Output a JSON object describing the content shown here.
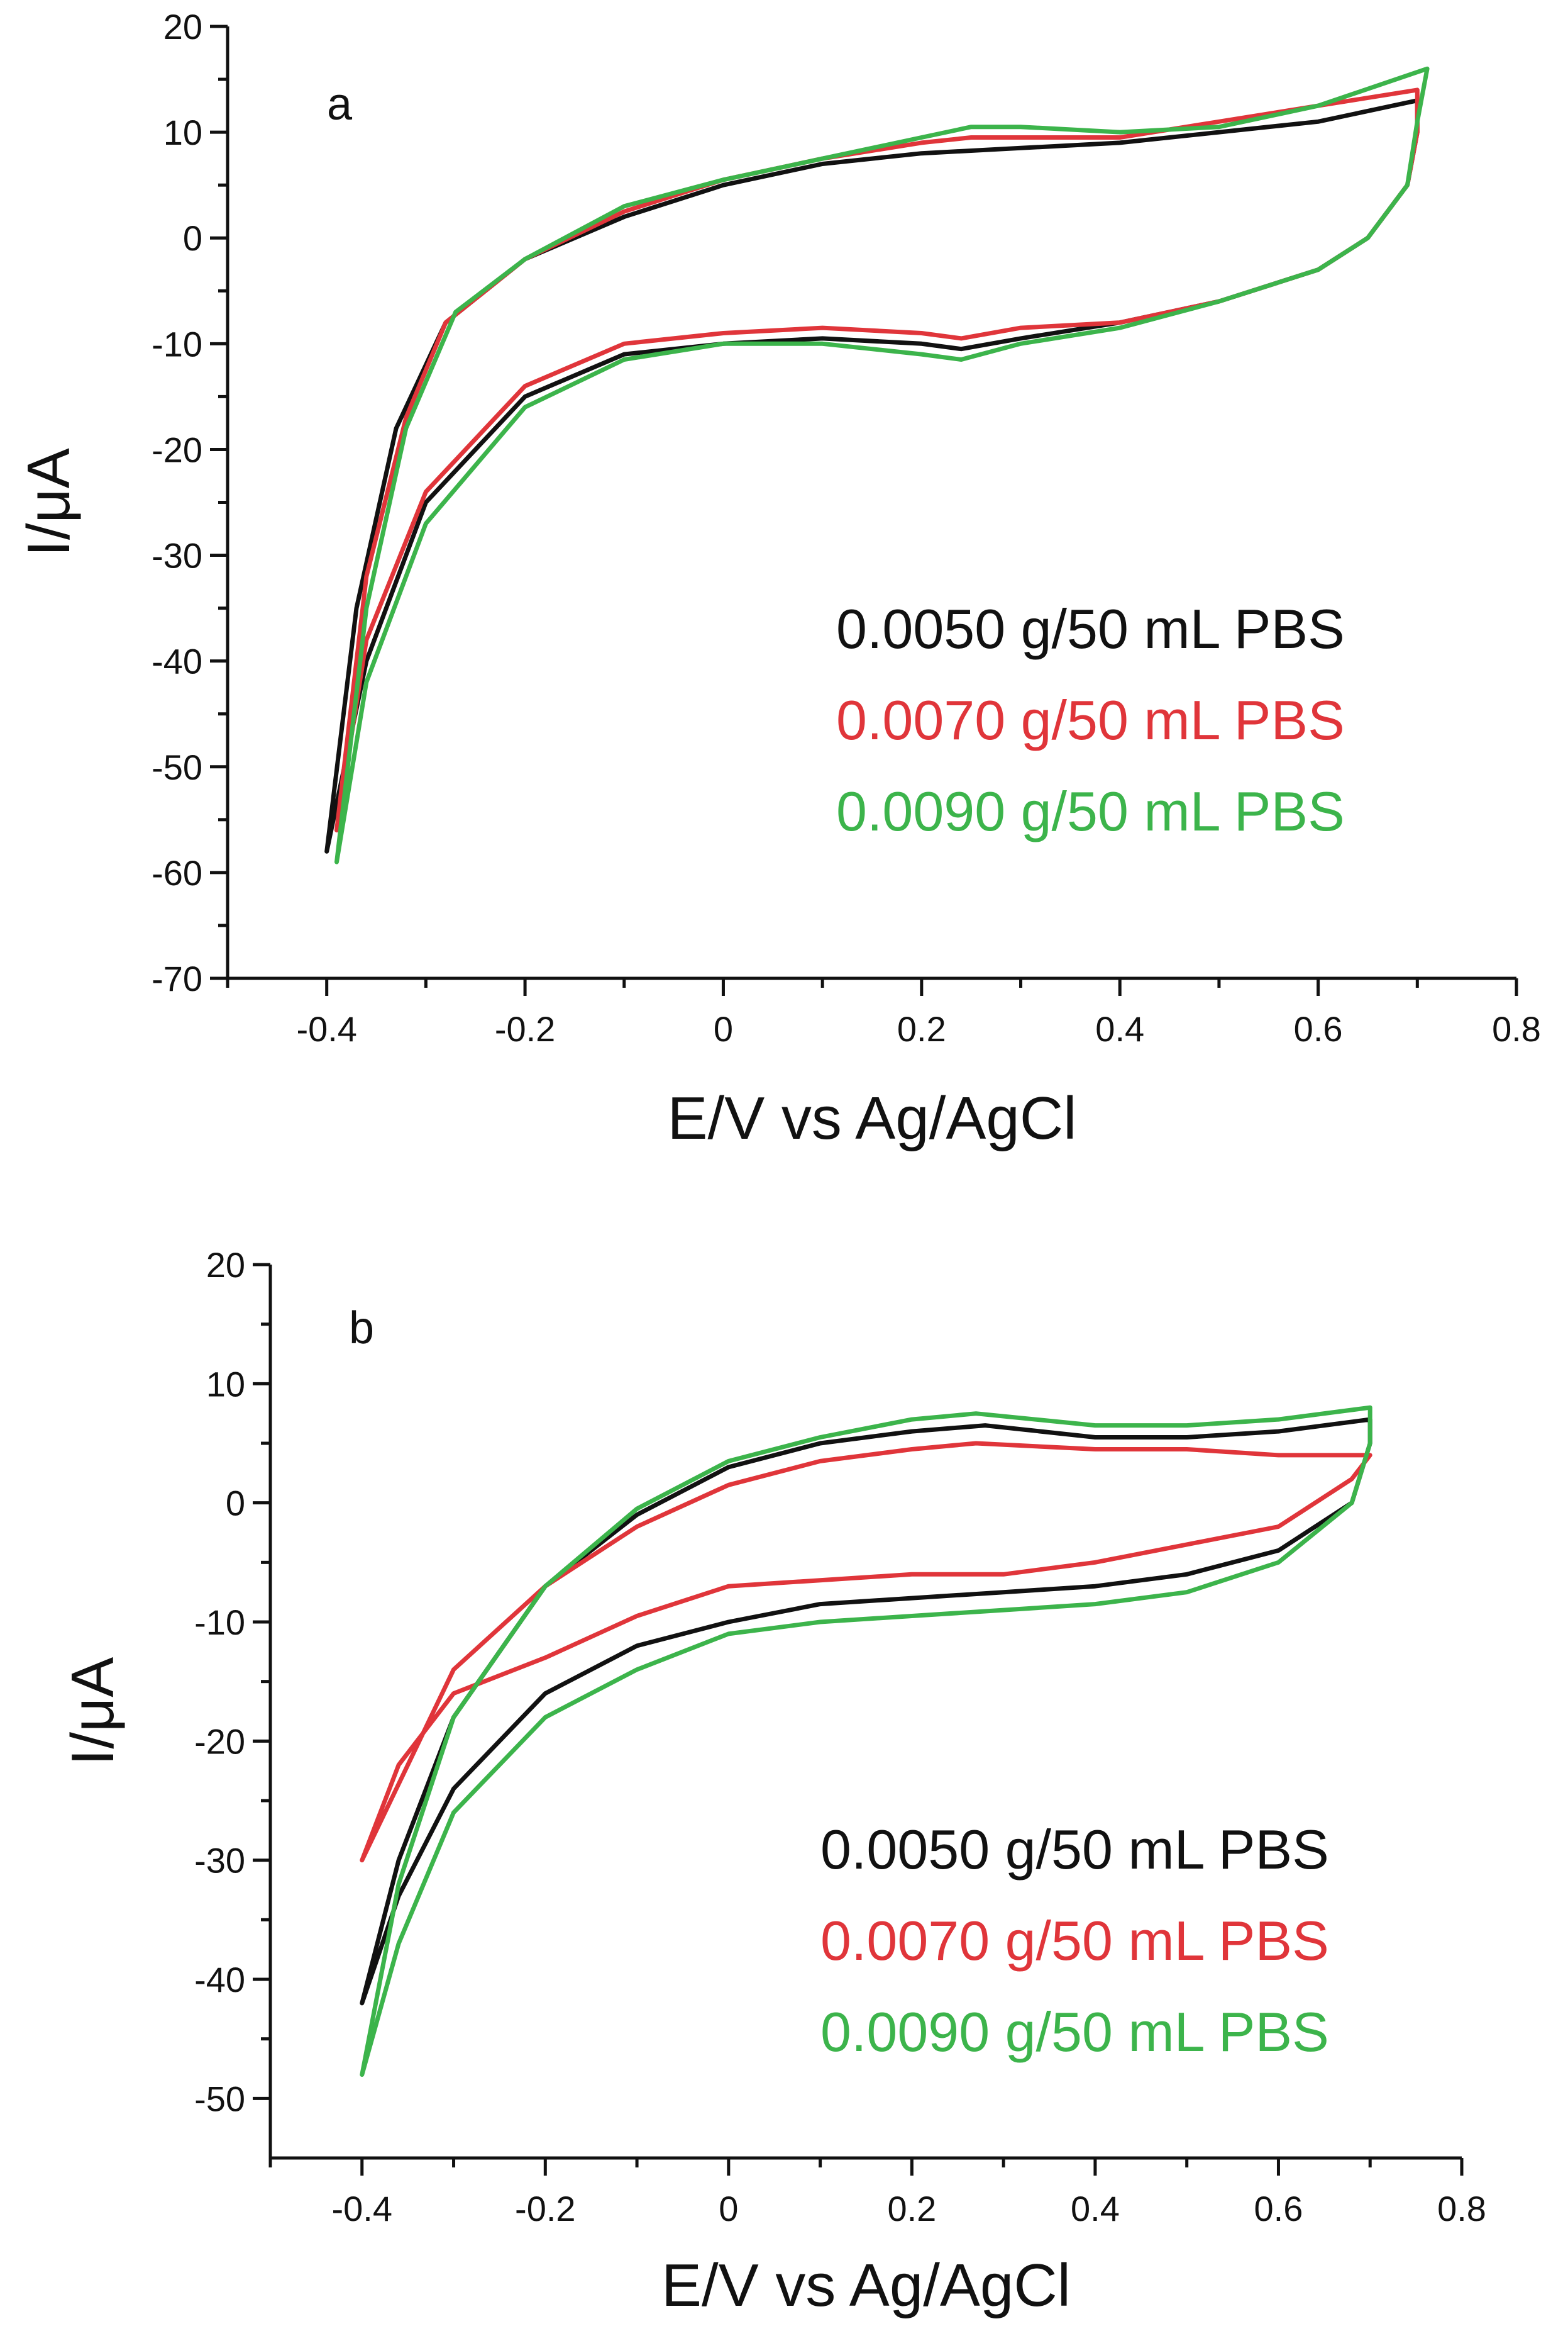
{
  "chart_data": [
    {
      "panel_label": "a",
      "type": "line",
      "xlabel": "E/V vs Ag/AgCl",
      "ylabel": "I/μA",
      "xlim": [
        -0.5,
        0.8
      ],
      "ylim": [
        -70,
        20
      ],
      "x_ticks": [
        -0.4,
        -0.2,
        0,
        0.2,
        0.4,
        0.6,
        0.8
      ],
      "x_tick_labels": [
        "-0.4",
        "-0.2",
        "0",
        "0.2",
        "0.4",
        "0.6",
        "0.8"
      ],
      "y_ticks": [
        20,
        10,
        0,
        -10,
        -20,
        -30,
        -40,
        -50,
        -60,
        -70
      ],
      "y_tick_labels": [
        "20",
        "10",
        "0",
        "-10",
        "-20",
        "-30",
        "-40",
        "-50",
        "-60",
        "-70"
      ],
      "legend_position": "lower-right",
      "series": [
        {
          "name": "0.0050 g/50 mL PBS",
          "color": "#111111",
          "points": [
            [
              -0.4,
              -58
            ],
            [
              -0.37,
              -35
            ],
            [
              -0.33,
              -18
            ],
            [
              -0.28,
              -8
            ],
            [
              -0.2,
              -2
            ],
            [
              -0.1,
              2
            ],
            [
              0.0,
              5
            ],
            [
              0.1,
              7
            ],
            [
              0.2,
              8
            ],
            [
              0.3,
              8.5
            ],
            [
              0.4,
              9
            ],
            [
              0.5,
              10
            ],
            [
              0.6,
              11
            ],
            [
              0.7,
              13
            ],
            [
              0.7,
              10
            ],
            [
              0.69,
              5
            ],
            [
              0.65,
              0
            ],
            [
              0.6,
              -3
            ],
            [
              0.5,
              -6
            ],
            [
              0.4,
              -8
            ],
            [
              0.3,
              -9.5
            ],
            [
              0.24,
              -10.5
            ],
            [
              0.2,
              -10
            ],
            [
              0.1,
              -9.5
            ],
            [
              0.0,
              -10
            ],
            [
              -0.1,
              -11
            ],
            [
              -0.2,
              -15
            ],
            [
              -0.3,
              -25
            ],
            [
              -0.36,
              -40
            ],
            [
              -0.4,
              -58
            ]
          ]
        },
        {
          "name": "0.0070 g/50 mL PBS",
          "color": "#e0353a",
          "points": [
            [
              -0.39,
              -56
            ],
            [
              -0.36,
              -32
            ],
            [
              -0.32,
              -17
            ],
            [
              -0.28,
              -8
            ],
            [
              -0.2,
              -2
            ],
            [
              -0.1,
              2.5
            ],
            [
              0.0,
              5.5
            ],
            [
              0.1,
              7.5
            ],
            [
              0.2,
              9
            ],
            [
              0.25,
              9.5
            ],
            [
              0.3,
              9.5
            ],
            [
              0.4,
              9.5
            ],
            [
              0.5,
              11
            ],
            [
              0.6,
              12.5
            ],
            [
              0.7,
              14
            ],
            [
              0.7,
              10
            ],
            [
              0.69,
              5
            ],
            [
              0.65,
              0
            ],
            [
              0.6,
              -3
            ],
            [
              0.5,
              -6
            ],
            [
              0.4,
              -8
            ],
            [
              0.3,
              -8.5
            ],
            [
              0.24,
              -9.5
            ],
            [
              0.2,
              -9
            ],
            [
              0.1,
              -8.5
            ],
            [
              0.0,
              -9
            ],
            [
              -0.1,
              -10
            ],
            [
              -0.2,
              -14
            ],
            [
              -0.3,
              -24
            ],
            [
              -0.36,
              -38
            ],
            [
              -0.39,
              -56
            ]
          ]
        },
        {
          "name": "0.0090 g/50 mL PBS",
          "color": "#3cb44b",
          "points": [
            [
              -0.39,
              -59
            ],
            [
              -0.36,
              -35
            ],
            [
              -0.32,
              -18
            ],
            [
              -0.27,
              -7
            ],
            [
              -0.2,
              -2
            ],
            [
              -0.1,
              3
            ],
            [
              0.0,
              5.5
            ],
            [
              0.1,
              7.5
            ],
            [
              0.2,
              9.5
            ],
            [
              0.25,
              10.5
            ],
            [
              0.3,
              10.5
            ],
            [
              0.4,
              10
            ],
            [
              0.5,
              10.5
            ],
            [
              0.6,
              12.5
            ],
            [
              0.71,
              16
            ],
            [
              0.7,
              11
            ],
            [
              0.69,
              5
            ],
            [
              0.65,
              0
            ],
            [
              0.6,
              -3
            ],
            [
              0.5,
              -6
            ],
            [
              0.4,
              -8.5
            ],
            [
              0.3,
              -10
            ],
            [
              0.24,
              -11.5
            ],
            [
              0.2,
              -11
            ],
            [
              0.1,
              -10
            ],
            [
              0.0,
              -10
            ],
            [
              -0.1,
              -11.5
            ],
            [
              -0.2,
              -16
            ],
            [
              -0.3,
              -27
            ],
            [
              -0.36,
              -42
            ],
            [
              -0.39,
              -59
            ]
          ]
        }
      ]
    },
    {
      "panel_label": "b",
      "type": "line",
      "xlabel": "E/V vs Ag/AgCl",
      "ylabel": "I/μA",
      "xlim": [
        -0.5,
        0.8
      ],
      "ylim": [
        -55,
        20
      ],
      "x_ticks": [
        -0.4,
        -0.2,
        0,
        0.2,
        0.4,
        0.6,
        0.8
      ],
      "x_tick_labels": [
        "-0.4",
        "-0.2",
        "0",
        "0.2",
        "0.4",
        "0.6",
        "0.8"
      ],
      "y_ticks": [
        20,
        10,
        0,
        -10,
        -20,
        -30,
        -40,
        -50
      ],
      "y_tick_labels": [
        "20",
        "10",
        "0",
        "-10",
        "-20",
        "-30",
        "-40",
        "-50"
      ],
      "legend_position": "lower-right",
      "series": [
        {
          "name": "0.0050 g/50 mL PBS",
          "color": "#111111",
          "points": [
            [
              -0.4,
              -42
            ],
            [
              -0.36,
              -30
            ],
            [
              -0.3,
              -18
            ],
            [
              -0.2,
              -7
            ],
            [
              -0.1,
              -1
            ],
            [
              0.0,
              3
            ],
            [
              0.1,
              5
            ],
            [
              0.2,
              6
            ],
            [
              0.28,
              6.5
            ],
            [
              0.4,
              5.5
            ],
            [
              0.5,
              5.5
            ],
            [
              0.6,
              6
            ],
            [
              0.7,
              7
            ],
            [
              0.7,
              5
            ],
            [
              0.68,
              0
            ],
            [
              0.6,
              -4
            ],
            [
              0.5,
              -6
            ],
            [
              0.4,
              -7
            ],
            [
              0.3,
              -7.5
            ],
            [
              0.2,
              -8
            ],
            [
              0.1,
              -8.5
            ],
            [
              0.0,
              -10
            ],
            [
              -0.1,
              -12
            ],
            [
              -0.2,
              -16
            ],
            [
              -0.3,
              -24
            ],
            [
              -0.36,
              -33
            ],
            [
              -0.4,
              -42
            ]
          ]
        },
        {
          "name": "0.0070 g/50 mL PBS",
          "color": "#e0353a",
          "points": [
            [
              -0.4,
              -30
            ],
            [
              -0.35,
              -22
            ],
            [
              -0.3,
              -14
            ],
            [
              -0.2,
              -7
            ],
            [
              -0.1,
              -2
            ],
            [
              0.0,
              1.5
            ],
            [
              0.1,
              3.5
            ],
            [
              0.2,
              4.5
            ],
            [
              0.27,
              5
            ],
            [
              0.4,
              4.5
            ],
            [
              0.5,
              4.5
            ],
            [
              0.6,
              4
            ],
            [
              0.7,
              4
            ],
            [
              0.68,
              2
            ],
            [
              0.6,
              -2
            ],
            [
              0.5,
              -3.5
            ],
            [
              0.4,
              -5
            ],
            [
              0.3,
              -6
            ],
            [
              0.2,
              -6
            ],
            [
              0.1,
              -6.5
            ],
            [
              0.0,
              -7
            ],
            [
              -0.1,
              -9.5
            ],
            [
              -0.2,
              -13
            ],
            [
              -0.3,
              -16
            ],
            [
              -0.36,
              -22
            ],
            [
              -0.4,
              -30
            ]
          ]
        },
        {
          "name": "0.0090 g/50 mL PBS",
          "color": "#3cb44b",
          "points": [
            [
              -0.4,
              -48
            ],
            [
              -0.36,
              -32
            ],
            [
              -0.3,
              -18
            ],
            [
              -0.2,
              -7
            ],
            [
              -0.1,
              -0.5
            ],
            [
              0.0,
              3.5
            ],
            [
              0.1,
              5.5
            ],
            [
              0.2,
              7
            ],
            [
              0.27,
              7.5
            ],
            [
              0.4,
              6.5
            ],
            [
              0.5,
              6.5
            ],
            [
              0.6,
              7
            ],
            [
              0.7,
              8
            ],
            [
              0.7,
              5
            ],
            [
              0.68,
              0
            ],
            [
              0.6,
              -5
            ],
            [
              0.5,
              -7.5
            ],
            [
              0.4,
              -8.5
            ],
            [
              0.3,
              -9
            ],
            [
              0.2,
              -9.5
            ],
            [
              0.1,
              -10
            ],
            [
              0.0,
              -11
            ],
            [
              -0.1,
              -14
            ],
            [
              -0.2,
              -18
            ],
            [
              -0.3,
              -26
            ],
            [
              -0.36,
              -37
            ],
            [
              -0.4,
              -48
            ]
          ]
        }
      ]
    }
  ]
}
